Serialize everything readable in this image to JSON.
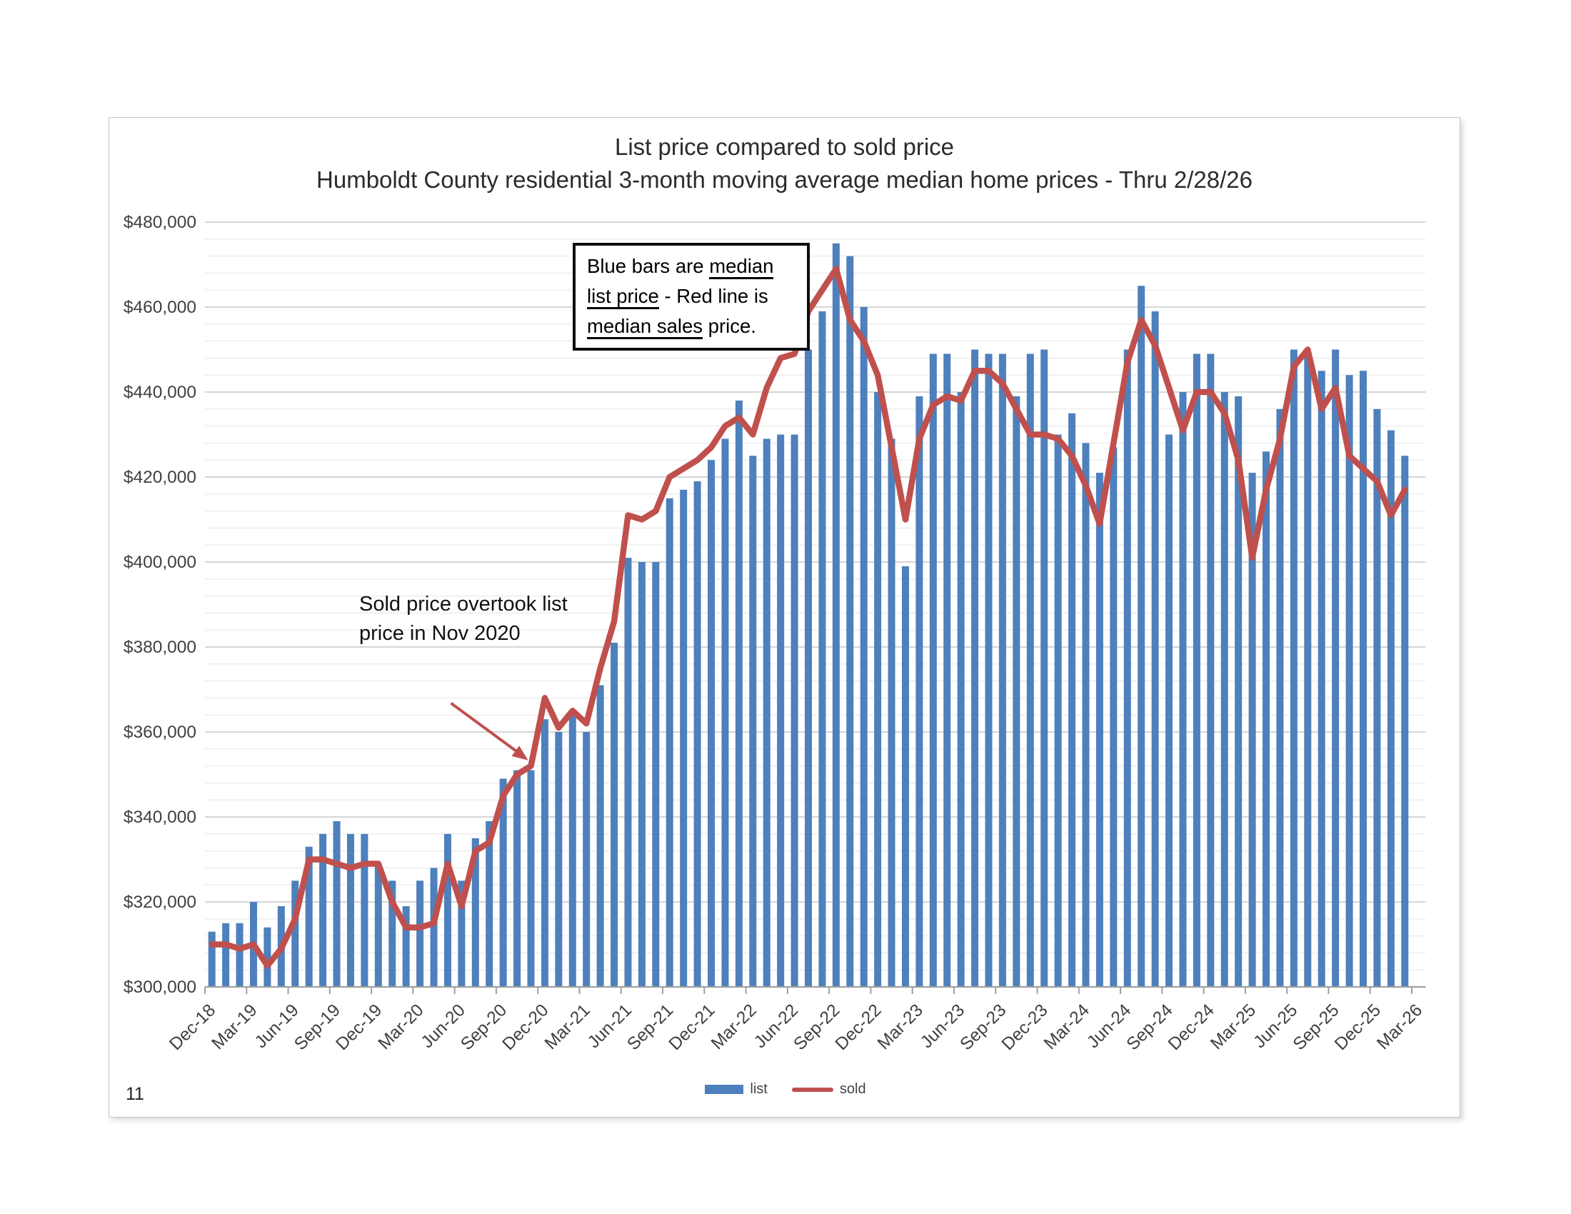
{
  "page": {
    "number_label": "11"
  },
  "header": {
    "title": "List price compared to sold price",
    "subtitle": "Humboldt County residential 3-month moving average median home prices - Thru 2/28/26"
  },
  "legend": {
    "list_label": "list",
    "sold_label": "sold"
  },
  "annotations": {
    "box_segments": [
      {
        "text": "Blue bars are ",
        "underline": false
      },
      {
        "text": "median list price",
        "underline": true
      },
      {
        "text": " - Red line is ",
        "underline": false
      },
      {
        "text": "median sales",
        "underline": true
      },
      {
        "text": " price.",
        "underline": false
      }
    ],
    "callout_text": "Sold price overtook list\nprice in Nov 2020",
    "arrow_target_month": "Nov-20"
  },
  "chart_data": {
    "type": "bar+line",
    "title": "List price compared to sold price",
    "subtitle": "Humboldt County residential 3-month moving average median home prices - Thru 2/28/26",
    "months": [
      "Dec-18",
      "Jan-19",
      "Feb-19",
      "Mar-19",
      "Apr-19",
      "May-19",
      "Jun-19",
      "Jul-19",
      "Aug-19",
      "Sep-19",
      "Oct-19",
      "Nov-19",
      "Dec-19",
      "Jan-20",
      "Feb-20",
      "Mar-20",
      "Apr-20",
      "May-20",
      "Jun-20",
      "Jul-20",
      "Aug-20",
      "Sep-20",
      "Oct-20",
      "Nov-20",
      "Dec-20",
      "Jan-21",
      "Feb-21",
      "Mar-21",
      "Apr-21",
      "May-21",
      "Jun-21",
      "Jul-21",
      "Aug-21",
      "Sep-21",
      "Oct-21",
      "Nov-21",
      "Dec-21",
      "Jan-22",
      "Feb-22",
      "Mar-22",
      "Apr-22",
      "May-22",
      "Jun-22",
      "Jul-22",
      "Aug-22",
      "Sep-22",
      "Oct-22",
      "Nov-22",
      "Dec-22",
      "Jan-23",
      "Feb-23",
      "Mar-23",
      "Apr-23",
      "May-23",
      "Jun-23",
      "Jul-23",
      "Aug-23",
      "Sep-23",
      "Oct-23",
      "Nov-23",
      "Dec-23",
      "Jan-24",
      "Feb-24",
      "Mar-24",
      "Apr-24",
      "May-24",
      "Jun-24",
      "Jul-24",
      "Aug-24",
      "Sep-24",
      "Oct-24",
      "Nov-24",
      "Dec-24",
      "Jan-25",
      "Feb-25",
      "Mar-25",
      "Apr-25",
      "May-25",
      "Jun-25",
      "Jul-25",
      "Aug-25",
      "Sep-25",
      "Oct-25",
      "Nov-25",
      "Dec-25",
      "Jan-26",
      "Feb-26"
    ],
    "series": [
      {
        "name": "list",
        "type": "bar",
        "color": "#4d80bc",
        "values": [
          313000,
          315000,
          315000,
          320000,
          314000,
          319000,
          325000,
          333000,
          336000,
          339000,
          336000,
          336000,
          329000,
          325000,
          319000,
          325000,
          328000,
          336000,
          325000,
          335000,
          339000,
          349000,
          351000,
          351000,
          363000,
          360000,
          364000,
          360000,
          371000,
          381000,
          401000,
          400000,
          400000,
          415000,
          417000,
          419000,
          424000,
          429000,
          438000,
          425000,
          429000,
          430000,
          430000,
          450000,
          459000,
          475000,
          472000,
          460000,
          440000,
          429000,
          399000,
          439000,
          449000,
          449000,
          440000,
          450000,
          449000,
          449000,
          439000,
          449000,
          450000,
          430000,
          435000,
          428000,
          421000,
          427000,
          450000,
          465000,
          459000,
          430000,
          440000,
          449000,
          449000,
          440000,
          439000,
          421000,
          426000,
          436000,
          450000,
          449000,
          445000,
          450000,
          444000,
          445000,
          436000,
          431000,
          425000
        ]
      },
      {
        "name": "sold",
        "type": "line",
        "color": "#c0504d",
        "values": [
          310000,
          310000,
          309000,
          310000,
          305000,
          309000,
          316000,
          330000,
          330000,
          329000,
          328000,
          329000,
          329000,
          320000,
          314000,
          314000,
          315000,
          329000,
          319000,
          332000,
          334000,
          345000,
          350000,
          352000,
          368000,
          361000,
          365000,
          362000,
          375000,
          386000,
          411000,
          410000,
          412000,
          420000,
          422000,
          424000,
          427000,
          432000,
          434000,
          430000,
          441000,
          448000,
          449000,
          459000,
          464000,
          469000,
          457000,
          452000,
          444000,
          427000,
          410000,
          429000,
          437000,
          439000,
          438000,
          445000,
          445000,
          442000,
          436000,
          430000,
          430000,
          429000,
          425000,
          418000,
          409000,
          428000,
          447000,
          457000,
          451000,
          441000,
          431000,
          440000,
          440000,
          435000,
          424000,
          401000,
          417000,
          429000,
          446000,
          450000,
          436000,
          441000,
          425000,
          422000,
          419000,
          411000,
          417000
        ]
      }
    ],
    "ylim": [
      300000,
      480000
    ],
    "y_major": 20000,
    "y_minor": 4000,
    "y_tick_labels": [
      "$300,000",
      "$320,000",
      "$340,000",
      "$360,000",
      "$380,000",
      "$400,000",
      "$420,000",
      "$440,000",
      "$460,000",
      "$480,000"
    ],
    "x_tick_labels": [
      "Dec-18",
      "Mar-19",
      "Jun-19",
      "Sep-19",
      "Dec-19",
      "Mar-20",
      "Jun-20",
      "Sep-20",
      "Dec-20",
      "Mar-21",
      "Jun-21",
      "Sep-21",
      "Dec-21",
      "Mar-22",
      "Jun-22",
      "Sep-22",
      "Dec-22",
      "Mar-23",
      "Jun-23",
      "Sep-23",
      "Dec-23",
      "Mar-24",
      "Jun-24",
      "Sep-24",
      "Dec-24",
      "Mar-25",
      "Jun-25",
      "Sep-25",
      "Dec-25",
      "Mar-26"
    ],
    "x_tick_every": 3,
    "xlabel": "",
    "ylabel": "",
    "grid": "on",
    "legend_position": "bottom"
  }
}
